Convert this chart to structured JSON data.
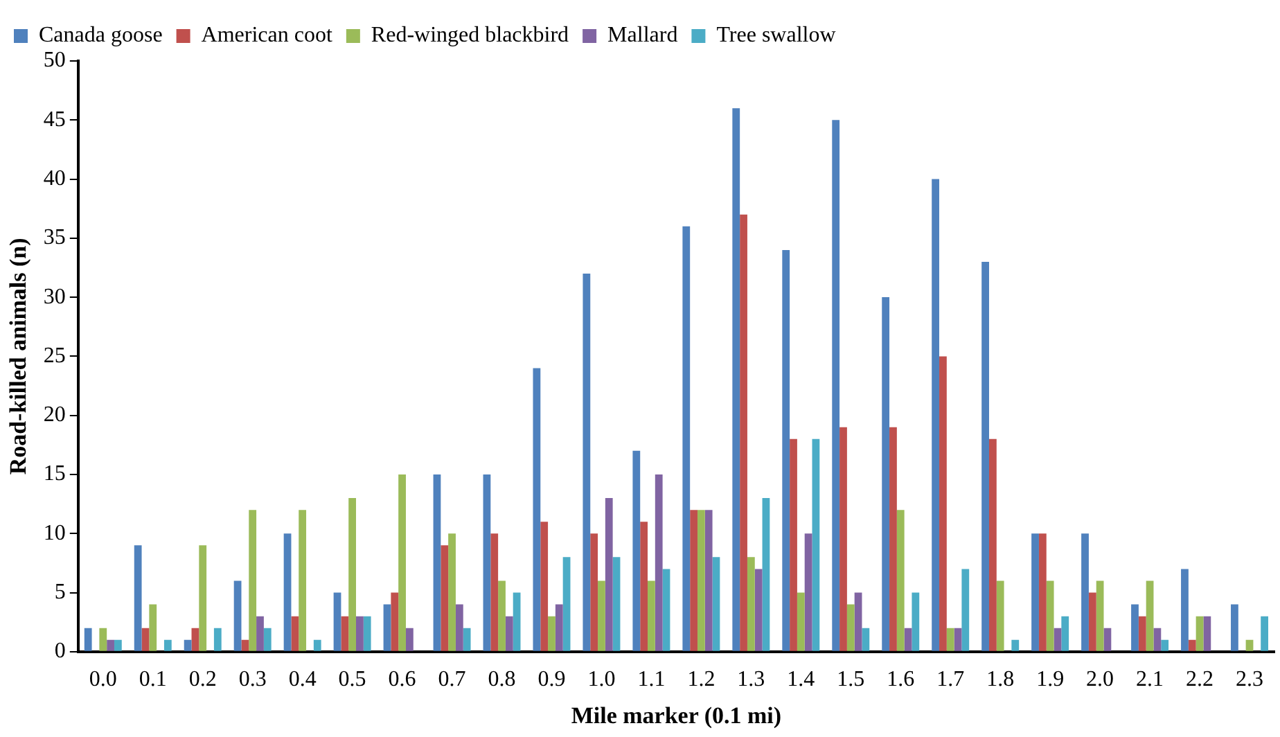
{
  "chart_data": {
    "type": "bar",
    "xlabel": "Mile marker (0.1 mi)",
    "ylabel": "Road-killed animals (n)",
    "categories": [
      "0.0",
      "0.1",
      "0.2",
      "0.3",
      "0.4",
      "0.5",
      "0.6",
      "0.7",
      "0.8",
      "0.9",
      "1.0",
      "1.1",
      "1.2",
      "1.3",
      "1.4",
      "1.5",
      "1.6",
      "1.7",
      "1.8",
      "1.9",
      "2.0",
      "2.1",
      "2.2",
      "2.3"
    ],
    "series": [
      {
        "name": "Canada goose",
        "color": "#4f81bd",
        "values": [
          2,
          9,
          1,
          6,
          10,
          5,
          4,
          15,
          15,
          24,
          32,
          17,
          36,
          46,
          34,
          45,
          30,
          40,
          33,
          10,
          10,
          4,
          7,
          4
        ]
      },
      {
        "name": "American coot",
        "color": "#c0504d",
        "values": [
          0,
          2,
          2,
          1,
          3,
          3,
          5,
          9,
          10,
          11,
          10,
          11,
          12,
          37,
          18,
          19,
          19,
          25,
          18,
          10,
          5,
          3,
          1,
          0
        ]
      },
      {
        "name": "Red-winged blackbird",
        "color": "#9bbb59",
        "values": [
          2,
          4,
          9,
          12,
          12,
          13,
          15,
          10,
          6,
          3,
          6,
          6,
          12,
          8,
          5,
          4,
          12,
          2,
          6,
          6,
          6,
          6,
          3,
          1
        ]
      },
      {
        "name": "Mallard",
        "color": "#8064a2",
        "values": [
          1,
          0,
          0,
          3,
          0,
          3,
          2,
          4,
          3,
          4,
          13,
          15,
          12,
          7,
          10,
          5,
          2,
          2,
          0,
          2,
          2,
          2,
          3,
          0
        ]
      },
      {
        "name": "Tree swallow",
        "color": "#4bacc6",
        "values": [
          1,
          1,
          2,
          2,
          1,
          3,
          0,
          2,
          5,
          8,
          8,
          7,
          8,
          13,
          18,
          2,
          5,
          7,
          1,
          3,
          0,
          1,
          0,
          3
        ]
      }
    ],
    "ylim": [
      0,
      50
    ],
    "yticks": [
      0,
      5,
      10,
      15,
      20,
      25,
      30,
      35,
      40,
      45,
      50
    ],
    "grid": false,
    "legend": "top left"
  }
}
